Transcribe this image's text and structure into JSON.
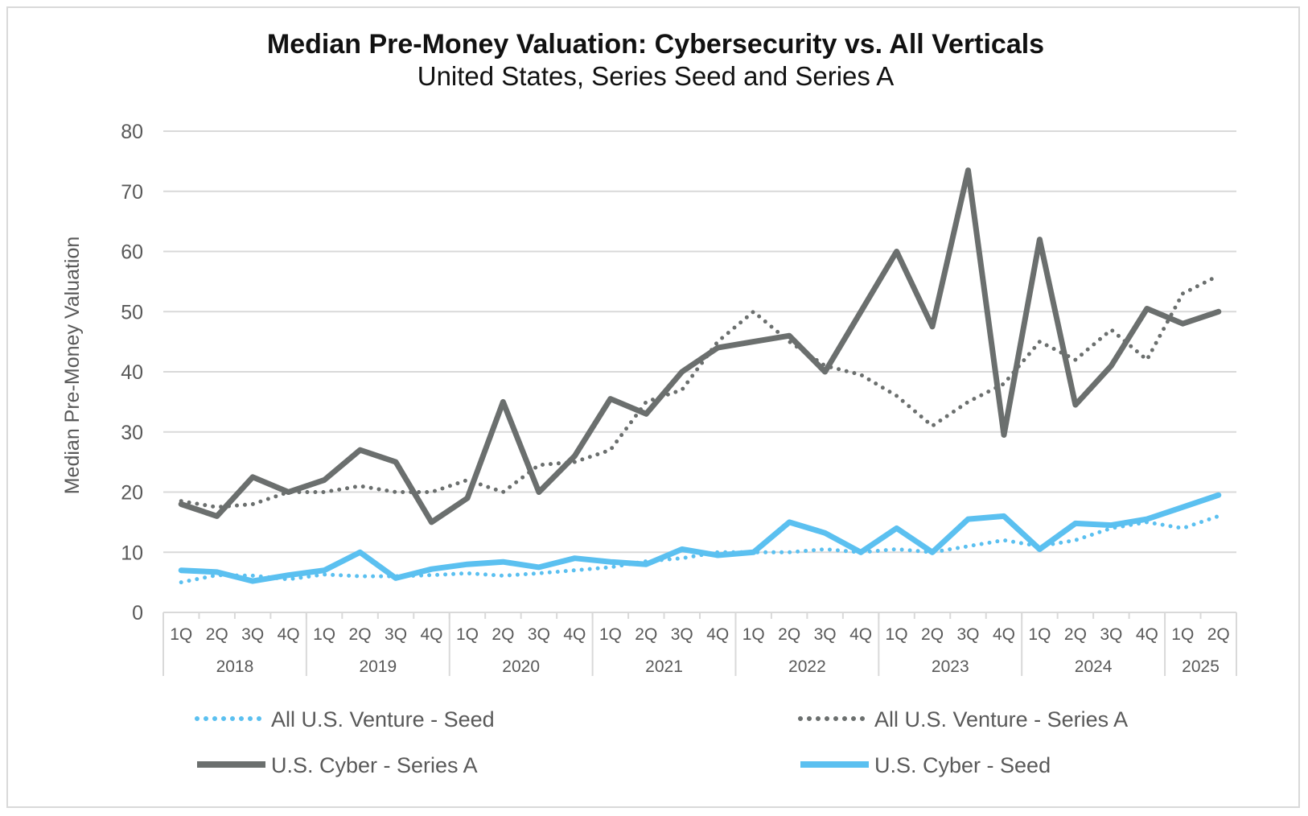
{
  "chart_data": {
    "type": "line",
    "title": "Median Pre-Money Valuation: Cybersecurity vs. All Verticals",
    "subtitle": "United States, Series Seed and Series A",
    "ylabel": "Median Pre-Money Valuation",
    "xlabel": "",
    "ylim": [
      0,
      80
    ],
    "yticks": [
      0,
      10,
      20,
      30,
      40,
      50,
      60,
      70,
      80
    ],
    "grid": true,
    "legend_position": "bottom",
    "quarters": [
      "1Q",
      "2Q",
      "3Q",
      "4Q",
      "1Q",
      "2Q",
      "3Q",
      "4Q",
      "1Q",
      "2Q",
      "3Q",
      "4Q",
      "1Q",
      "2Q",
      "3Q",
      "4Q",
      "1Q",
      "2Q",
      "3Q",
      "4Q",
      "1Q",
      "2Q",
      "3Q",
      "4Q",
      "1Q",
      "2Q",
      "3Q",
      "4Q",
      "1Q",
      "2Q"
    ],
    "years": [
      {
        "label": "2018",
        "count": 4
      },
      {
        "label": "2019",
        "count": 4
      },
      {
        "label": "2020",
        "count": 4
      },
      {
        "label": "2021",
        "count": 4
      },
      {
        "label": "2022",
        "count": 4
      },
      {
        "label": "2023",
        "count": 4
      },
      {
        "label": "2024",
        "count": 4
      },
      {
        "label": "2025",
        "count": 2
      }
    ],
    "series": [
      {
        "name": "All U.S. Venture - Seed",
        "color": "#5bc0f0",
        "style": "dotted",
        "values": [
          5,
          6.2,
          6.1,
          5.5,
          6.3,
          6,
          6,
          6.2,
          6.5,
          6.1,
          6.5,
          7,
          7.5,
          8.5,
          9,
          10,
          10,
          10,
          10.5,
          10,
          10.5,
          10,
          11,
          12,
          11,
          12,
          14,
          15,
          14,
          16
        ]
      },
      {
        "name": "All U.S. Venture - Series A",
        "color": "#6b6f6e",
        "style": "dotted",
        "values": [
          18.5,
          17.5,
          18,
          20,
          20,
          21,
          20,
          20,
          22,
          20,
          24.5,
          25,
          27,
          35,
          37,
          45,
          50,
          45,
          41,
          39.5,
          36,
          31,
          35,
          38,
          45,
          42,
          47,
          42,
          53,
          56
        ]
      },
      {
        "name": "U.S. Cyber - Series A",
        "color": "#6b6f6e",
        "style": "solid",
        "values": [
          18,
          16,
          22.5,
          20,
          22,
          27,
          25,
          15,
          19,
          35,
          20,
          26,
          35.5,
          33,
          40,
          44,
          45,
          46,
          40,
          50,
          60,
          47.5,
          73.5,
          29.5,
          62,
          34.5,
          41,
          50.5,
          48,
          50
        ]
      },
      {
        "name": "U.S. Cyber - Seed",
        "color": "#5bc0f0",
        "style": "solid",
        "values": [
          7,
          6.7,
          5.2,
          6.2,
          7,
          10,
          5.7,
          7.2,
          8,
          8.4,
          7.5,
          9,
          8.4,
          8,
          10.5,
          9.5,
          10,
          15,
          13.2,
          10,
          14,
          10,
          15.5,
          16,
          10.5,
          14.8,
          14.5,
          15.5,
          17.5,
          19.5
        ]
      }
    ]
  }
}
